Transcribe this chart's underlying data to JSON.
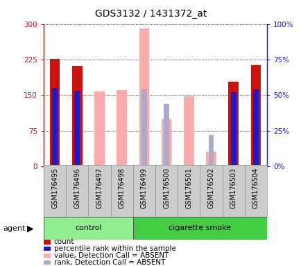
{
  "title": "GDS3132 / 1431372_at",
  "samples": [
    "GSM176495",
    "GSM176496",
    "GSM176497",
    "GSM176498",
    "GSM176499",
    "GSM176500",
    "GSM176501",
    "GSM176502",
    "GSM176503",
    "GSM176504"
  ],
  "group_control": [
    0,
    1,
    2,
    3
  ],
  "group_smoke": [
    4,
    5,
    6,
    7,
    8,
    9
  ],
  "count_values": [
    226,
    212,
    null,
    null,
    null,
    null,
    null,
    null,
    178,
    213
  ],
  "percentile_values": [
    55,
    53,
    null,
    null,
    null,
    null,
    null,
    null,
    52,
    54
  ],
  "absent_value_values": [
    null,
    null,
    158,
    160,
    290,
    100,
    148,
    30,
    null,
    null
  ],
  "absent_rank_values": [
    null,
    null,
    null,
    null,
    54,
    44,
    null,
    22,
    null,
    null
  ],
  "ylim_left": [
    0,
    300
  ],
  "ylim_right": [
    0,
    100
  ],
  "left_ticks": [
    0,
    75,
    150,
    225,
    300
  ],
  "right_ticks": [
    0,
    25,
    50,
    75,
    100
  ],
  "color_count": "#cc1111",
  "color_percentile": "#1a1acc",
  "color_absent_value": "#ffaaaa",
  "color_absent_rank": "#aaaacc",
  "color_control_bg": "#90ee90",
  "color_smoke_bg": "#44cc44",
  "grid_color": "#000000",
  "tick_area_color": "#cccccc",
  "bar_width": 0.45,
  "agent_label": "agent",
  "control_label": "control",
  "smoke_label": "cigarette smoke",
  "legend_items": [
    {
      "color": "#cc1111",
      "label": "count"
    },
    {
      "color": "#1a1acc",
      "label": "percentile rank within the sample"
    },
    {
      "color": "#ffaaaa",
      "label": "value, Detection Call = ABSENT"
    },
    {
      "color": "#aaaacc",
      "label": "rank, Detection Call = ABSENT"
    }
  ]
}
